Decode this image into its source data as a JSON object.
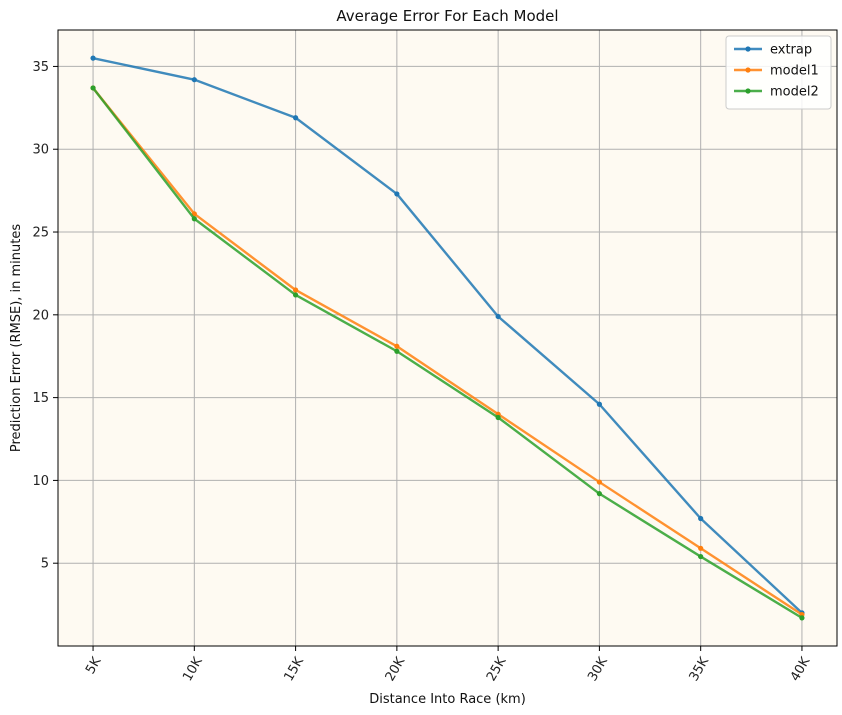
{
  "chart_data": {
    "type": "line",
    "title": "Average Error For Each Model",
    "xlabel": "Distance Into Race (km)",
    "ylabel": "Prediction Error (RMSE), in minutes",
    "categories": [
      "5K",
      "10K",
      "15K",
      "20K",
      "25K",
      "30K",
      "35K",
      "40K"
    ],
    "ylim": [
      0,
      37.2
    ],
    "yticks": [
      5,
      10,
      15,
      20,
      25,
      30,
      35
    ],
    "grid": true,
    "legend_position": "top-right",
    "background_color": "#fefaf2",
    "series": [
      {
        "name": "extrap",
        "color": "#1f77b4",
        "values": [
          35.5,
          34.2,
          31.9,
          27.3,
          19.9,
          14.6,
          7.7,
          2.0
        ]
      },
      {
        "name": "model1",
        "color": "#ff7f0e",
        "values": [
          33.7,
          26.1,
          21.5,
          18.1,
          14.0,
          9.9,
          5.9,
          1.9
        ]
      },
      {
        "name": "model2",
        "color": "#2ca02c",
        "values": [
          33.7,
          25.8,
          21.2,
          17.8,
          13.8,
          9.2,
          5.4,
          1.7
        ]
      }
    ]
  }
}
